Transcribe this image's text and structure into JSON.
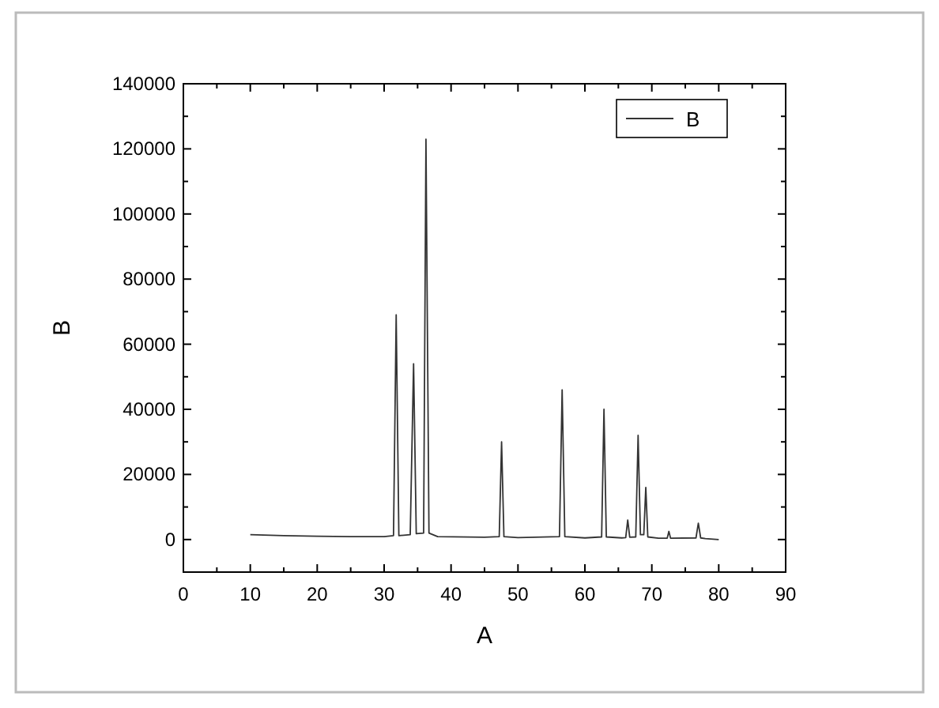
{
  "chart_data": {
    "type": "line",
    "xlabel": "A",
    "ylabel": "B",
    "xlim": [
      0,
      90
    ],
    "xticks": [
      0,
      10,
      20,
      30,
      40,
      50,
      60,
      70,
      80,
      90
    ],
    "ylim": [
      -10000,
      140000
    ],
    "yticks": [
      0,
      20000,
      40000,
      60000,
      80000,
      100000,
      120000,
      140000
    ],
    "grid": false,
    "legend": "top right",
    "marker": "none",
    "line_style": "solid",
    "series": [
      {
        "name": "B",
        "color": "#333333",
        "x": [
          10,
          15,
          20,
          25,
          30,
          31.4,
          31.8,
          32.2,
          33.9,
          34.4,
          34.8,
          35.9,
          36.25,
          36.7,
          38,
          45,
          47.2,
          47.55,
          47.9,
          50,
          56.2,
          56.6,
          57,
          60,
          62.5,
          62.85,
          63.2,
          65.5,
          66.1,
          66.4,
          66.7,
          67.6,
          67.95,
          68.3,
          68.8,
          69.1,
          69.4,
          71,
          72.3,
          72.55,
          72.8,
          76.6,
          76.95,
          77.3,
          78,
          80
        ],
        "values": [
          1500,
          1200,
          1000,
          900,
          900,
          1200,
          69000,
          1200,
          1500,
          54000,
          1800,
          2000,
          123000,
          2000,
          900,
          700,
          900,
          30000,
          900,
          600,
          900,
          46000,
          900,
          500,
          800,
          40000,
          800,
          500,
          600,
          6000,
          700,
          800,
          32000,
          1500,
          1500,
          16000,
          800,
          400,
          400,
          2500,
          400,
          500,
          5000,
          500,
          300,
          0
        ]
      }
    ]
  }
}
